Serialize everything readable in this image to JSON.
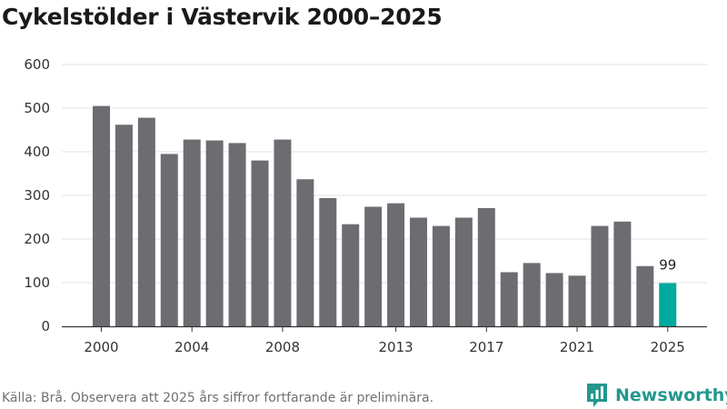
{
  "chart_data": {
    "type": "bar",
    "title": "Cykelstölder i Västervik 2000–2025",
    "categories": [
      2000,
      2001,
      2002,
      2003,
      2004,
      2005,
      2006,
      2007,
      2008,
      2009,
      2010,
      2011,
      2012,
      2013,
      2014,
      2015,
      2016,
      2017,
      2018,
      2019,
      2020,
      2021,
      2022,
      2023,
      2024,
      2025
    ],
    "values": [
      505,
      462,
      478,
      395,
      428,
      426,
      420,
      380,
      428,
      337,
      294,
      234,
      274,
      282,
      249,
      230,
      249,
      271,
      124,
      145,
      122,
      116,
      230,
      240,
      138,
      99
    ],
    "x_tick_labels": [
      "2000",
      "2004",
      "2008",
      "2013",
      "2017",
      "2021",
      "2025"
    ],
    "y_ticks": [
      0,
      100,
      200,
      300,
      400,
      500,
      600
    ],
    "ylim": [
      0,
      600
    ],
    "grid": true,
    "highlighted_category": 2025,
    "data_labels": [
      {
        "category": 2025,
        "text": "99"
      }
    ],
    "colors": {
      "bar": "#6d6c71",
      "highlight": "#00a99d",
      "grid": "#e3e3e3",
      "axis": "#333333"
    }
  },
  "footer": {
    "source": "Källa: Brå. Observera att 2025 års siffror fortfarande är preliminära."
  },
  "brand": {
    "name": "Newsworthy",
    "icon": "newsworthy-logo-icon",
    "color": "#23978e"
  }
}
